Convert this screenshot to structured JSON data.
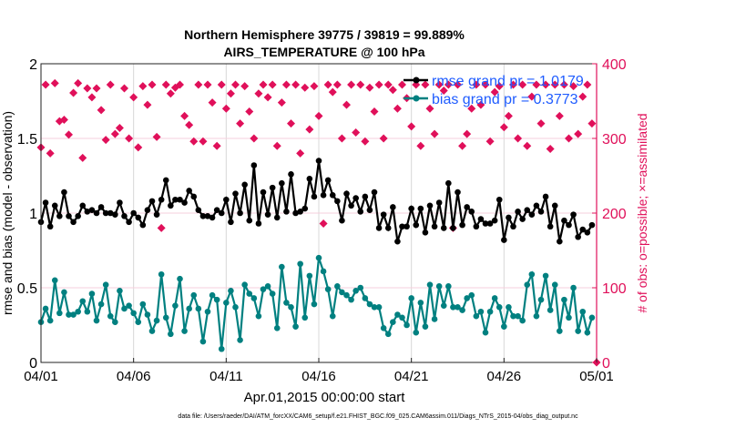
{
  "chart_data": {
    "type": "line",
    "title": [
      "Northern Hemisphere 39775 / 39819 = 99.889%",
      "AIRS_TEMPERATURE @ 100 hPa"
    ],
    "xlabel": "Apr.01,2015 00:00:00 start",
    "ylabel": "rmse and bias (model - observation)",
    "ylabel_right": "# of obs: o=possible; ×=assimilated",
    "xlim": [
      0,
      30
    ],
    "ylim": [
      0,
      2
    ],
    "ylim_right": [
      0,
      400
    ],
    "x_ticks": [
      0,
      5,
      10,
      15,
      20,
      25,
      30
    ],
    "x_tick_labels": [
      "04/01",
      "04/06",
      "04/11",
      "04/16",
      "04/21",
      "04/26",
      "05/01"
    ],
    "y_ticks": [
      0,
      0.5,
      1,
      1.5,
      2
    ],
    "y_tick_labels": [
      "0",
      "0.5",
      "1",
      "1.5",
      "2"
    ],
    "y_right_ticks": [
      0,
      100,
      200,
      300,
      400
    ],
    "y_right_tick_labels": [
      "0",
      "100",
      "200",
      "300",
      "400"
    ],
    "x_step_days": 0.25,
    "grid": true,
    "legend_position": "top-right",
    "series": [
      {
        "name": "rmse grand pr = 1.0179",
        "color": "#000000",
        "values": [
          0.94,
          1.07,
          0.91,
          1.05,
          0.98,
          1.14,
          0.98,
          0.94,
          0.98,
          1.05,
          1.01,
          1.02,
          1.0,
          1.04,
          1.0,
          1.0,
          0.99,
          1.07,
          0.98,
          0.94,
          1.0,
          0.97,
          0.92,
          1.02,
          1.08,
          0.99,
          1.09,
          1.22,
          1.05,
          1.09,
          1.09,
          1.07,
          1.15,
          1.11,
          1.02,
          0.98,
          0.98,
          0.97,
          1.02,
          1.0,
          1.09,
          0.94,
          1.13,
          1.0,
          1.19,
          0.95,
          1.32,
          0.93,
          1.14,
          0.99,
          1.17,
          0.97,
          1.2,
          1.01,
          1.26,
          1.0,
          1.01,
          1.03,
          1.23,
          1.11,
          1.35,
          1.12,
          1.22,
          1.12,
          1.08,
          0.95,
          1.13,
          1.05,
          1.1,
          1.01,
          1.11,
          1.02,
          1.14,
          0.9,
          0.99,
          0.9,
          1.04,
          0.81,
          0.91,
          0.91,
          1.03,
          0.92,
          1.03,
          0.87,
          1.05,
          0.91,
          1.07,
          0.9,
          1.2,
          0.9,
          1.14,
          0.92,
          1.04,
          1.01,
          0.91,
          0.96,
          0.93,
          0.93,
          0.95,
          1.09,
          0.82,
          0.97,
          0.91,
          1.01,
          0.96,
          1.02,
          0.99,
          1.05,
          1.01,
          1.11,
          0.91,
          1.05,
          0.81,
          0.95,
          0.92,
          0.99,
          0.84,
          0.89,
          0.87,
          0.92
        ]
      },
      {
        "name": "bias grand pr = 0.3773",
        "color": "#008080",
        "values": [
          0.27,
          0.36,
          0.28,
          0.55,
          0.33,
          0.47,
          0.32,
          0.32,
          0.34,
          0.41,
          0.34,
          0.46,
          0.28,
          0.39,
          0.52,
          0.31,
          0.27,
          0.48,
          0.36,
          0.38,
          0.33,
          0.27,
          0.39,
          0.32,
          0.21,
          0.28,
          0.59,
          0.3,
          0.19,
          0.38,
          0.56,
          0.21,
          0.36,
          0.45,
          0.36,
          0.14,
          0.34,
          0.45,
          0.42,
          0.09,
          0.4,
          0.48,
          0.37,
          0.15,
          0.52,
          0.46,
          0.43,
          0.31,
          0.49,
          0.51,
          0.46,
          0.23,
          0.64,
          0.4,
          0.37,
          0.24,
          0.66,
          0.3,
          0.58,
          0.39,
          0.7,
          0.61,
          0.49,
          0.31,
          0.51,
          0.47,
          0.45,
          0.42,
          0.48,
          0.5,
          0.43,
          0.39,
          0.37,
          0.37,
          0.23,
          0.19,
          0.27,
          0.32,
          0.3,
          0.25,
          0.43,
          0.2,
          0.4,
          0.24,
          0.52,
          0.29,
          0.51,
          0.38,
          0.51,
          0.37,
          0.37,
          0.35,
          0.43,
          0.45,
          0.31,
          0.34,
          0.2,
          0.34,
          0.43,
          0.37,
          0.24,
          0.37,
          0.31,
          0.31,
          0.28,
          0.52,
          0.59,
          0.31,
          0.42,
          0.58,
          0.35,
          0.52,
          0.21,
          0.42,
          0.3,
          0.5,
          0.21,
          0.34,
          0.2,
          0.3
        ]
      },
      {
        "name": "# obs assimilated",
        "color": "#e0105a",
        "axis": "right",
        "values": [
          288,
          372,
          280,
          374,
          323,
          325,
          305,
          361,
          374,
          274,
          367,
          355,
          367,
          338,
          298,
          372,
          306,
          314,
          367,
          300,
          355,
          288,
          370,
          345,
          372,
          302,
          180,
          372,
          360,
          368,
          372,
          330,
          318,
          296,
          372,
          296,
          372,
          348,
          290,
          372,
          340,
          360,
          372,
          320,
          370,
          336,
          300,
          360,
          372,
          355,
          372,
          290,
          348,
          372,
          320,
          372,
          280,
          368,
          312,
          370,
          330,
          186,
          372,
          362,
          372,
          300,
          345,
          372,
          308,
          372,
          296,
          368,
          336,
          372,
          300,
          372,
          365,
          340,
          372,
          354,
          316,
          372,
          290,
          372,
          340,
          306,
          372,
          364,
          372,
          180,
          372,
          290,
          306,
          340,
          372,
          345,
          372,
          296,
          362,
          370,
          315,
          330,
          372,
          300,
          372,
          290,
          356,
          372,
          320,
          372,
          286,
          372,
          330,
          372,
          300,
          370,
          306,
          356,
          372,
          320,
          0
        ]
      }
    ]
  },
  "footer": "data file: /Users/raeder/DAI/ATM_forcXX/CAM6_setup/f.e21.FHIST_BGC.f09_025.CAM6assim.011/Diags_NTrS_2015-04/obs_diag_output.nc"
}
